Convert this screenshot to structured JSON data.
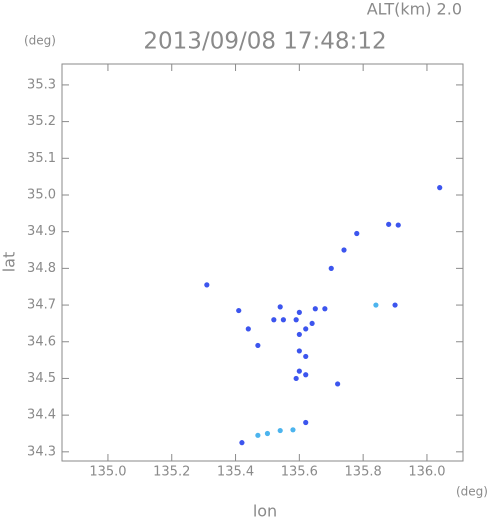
{
  "chart_data": {
    "type": "scatter",
    "title": "2013/09/08 17:48:12",
    "subtitle": "ALT(km) 2.0",
    "x_label": "lon",
    "y_label": "lat",
    "x_unit": "(deg)",
    "y_unit": "(deg)",
    "xlim": [
      134.856,
      136.113
    ],
    "ylim": [
      34.275,
      35.357
    ],
    "xticks": [
      {
        "value": 135,
        "label": "135.0"
      },
      135.2,
      135.4,
      135.6,
      135.8,
      {
        "value": 136,
        "label": "136.0"
      }
    ],
    "yticks": [
      34.3,
      34.4,
      34.5,
      34.6,
      34.7,
      34.8,
      34.9,
      {
        "value": 35,
        "label": "35.0"
      },
      35.1,
      35.2,
      35.3
    ],
    "series": [
      {
        "color": "#3c55ee",
        "x": [
          135.31,
          135.41,
          135.44,
          135.47,
          135.54,
          135.55,
          135.52,
          135.59,
          135.6,
          135.62,
          135.6,
          135.64,
          135.65,
          135.68,
          135.6,
          135.62,
          135.6,
          135.62,
          135.59,
          135.72,
          135.9,
          135.88,
          135.91,
          135.78,
          135.74,
          135.7,
          136.04,
          135.62,
          135.42
        ],
        "y": [
          34.755,
          34.685,
          34.635,
          34.59,
          34.695,
          34.66,
          34.66,
          34.66,
          34.68,
          34.635,
          34.62,
          34.65,
          34.69,
          34.69,
          34.575,
          34.56,
          34.52,
          34.51,
          34.5,
          34.485,
          34.7,
          34.92,
          34.918,
          34.895,
          34.85,
          34.8,
          35.02,
          34.38,
          34.325
        ]
      },
      {
        "color": "#4cb4ee",
        "x": [
          135.84,
          135.47,
          135.5,
          135.54,
          135.58
        ],
        "y": [
          34.7,
          34.345,
          34.35,
          34.358,
          34.36
        ]
      }
    ]
  }
}
